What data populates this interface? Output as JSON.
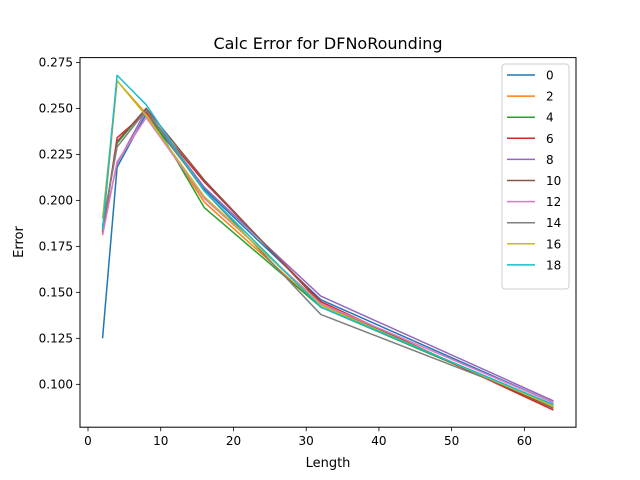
{
  "chart_data": {
    "type": "line",
    "title": "Calc Error for DFNoRounding",
    "xlabel": "Length",
    "ylabel": "Error",
    "xlim": [
      -1.1,
      67.1
    ],
    "ylim": [
      0.0767,
      0.2776
    ],
    "xticks": [
      0,
      10,
      20,
      30,
      40,
      50,
      60
    ],
    "yticks": [
      0.1,
      0.125,
      0.15,
      0.175,
      0.2,
      0.225,
      0.25,
      0.275
    ],
    "x": [
      2,
      4,
      8,
      16,
      32,
      64
    ],
    "grid": false,
    "legend_position": "top-right",
    "series": [
      {
        "name": "0",
        "color": "#1f77b4",
        "values": [
          0.125,
          0.218,
          0.247,
          0.206,
          0.146,
          0.09
        ]
      },
      {
        "name": "2",
        "color": "#ff7f0e",
        "values": [
          0.183,
          0.265,
          0.247,
          0.199,
          0.142,
          0.088
        ]
      },
      {
        "name": "4",
        "color": "#2ca02c",
        "values": [
          0.185,
          0.231,
          0.25,
          0.196,
          0.142,
          0.088
        ]
      },
      {
        "name": "6",
        "color": "#d62728",
        "values": [
          0.182,
          0.234,
          0.248,
          0.21,
          0.145,
          0.086
        ]
      },
      {
        "name": "8",
        "color": "#9467bd",
        "values": [
          0.184,
          0.22,
          0.249,
          0.207,
          0.148,
          0.091
        ]
      },
      {
        "name": "10",
        "color": "#8c564b",
        "values": [
          0.183,
          0.232,
          0.25,
          0.211,
          0.144,
          0.087
        ]
      },
      {
        "name": "12",
        "color": "#e377c2",
        "values": [
          0.181,
          0.221,
          0.245,
          0.201,
          0.144,
          0.09
        ]
      },
      {
        "name": "14",
        "color": "#7f7f7f",
        "values": [
          0.186,
          0.229,
          0.249,
          0.205,
          0.138,
          0.089
        ]
      },
      {
        "name": "16",
        "color": "#bcbd22",
        "values": [
          0.19,
          0.265,
          0.246,
          0.202,
          0.143,
          0.088
        ]
      },
      {
        "name": "18",
        "color": "#17becf",
        "values": [
          0.184,
          0.268,
          0.252,
          0.205,
          0.142,
          0.089
        ]
      }
    ]
  }
}
